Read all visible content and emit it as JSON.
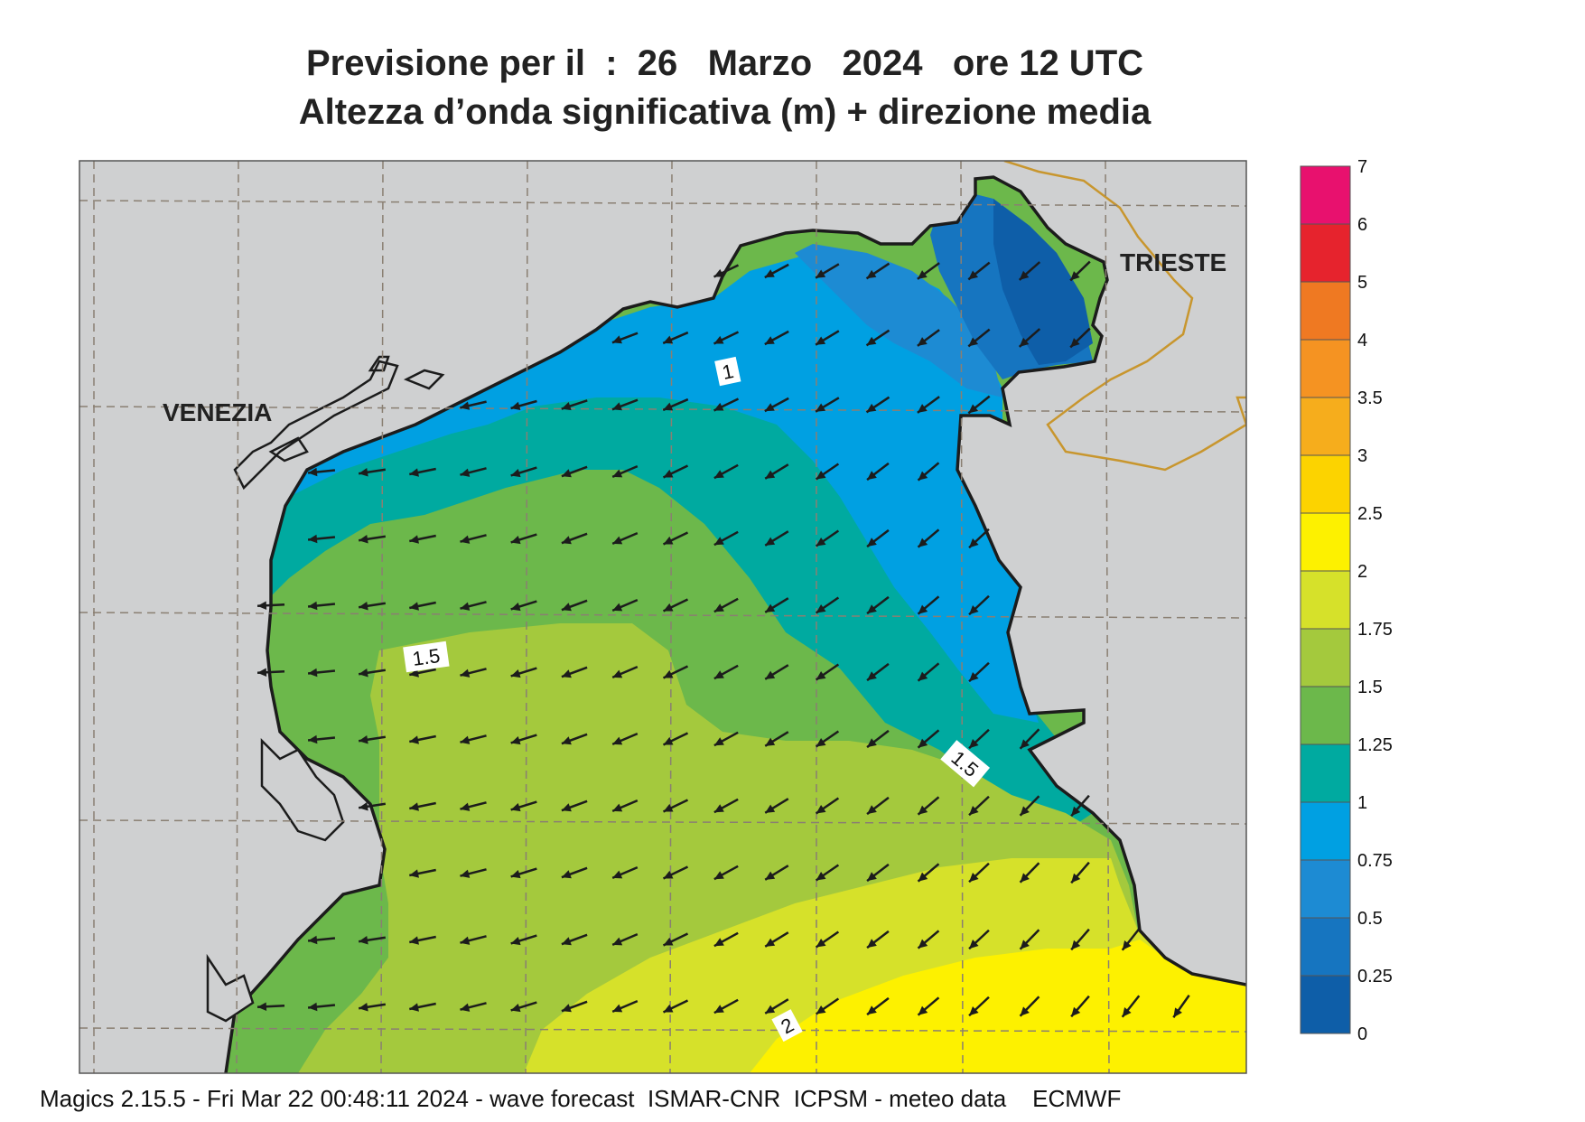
{
  "header": {
    "title_line1": "Previsione per il  :  26   Marzo   2024   ore 12 UTC",
    "title_line2": "Altezza d’onda significativa (m) + direzione media"
  },
  "map": {
    "cities": [
      "VENEZIA",
      "TRIESTE"
    ],
    "contour_labels": [
      "1",
      "1.5",
      "1.5",
      "2"
    ],
    "colors": {
      "land": "#cfd0d1",
      "coast": "#1c1c1c",
      "border": "#c8962e",
      "grid": "#8a7f72",
      "arrow": "#1c1c1c"
    }
  },
  "colorbar": {
    "labels": [
      "7",
      "6",
      "5",
      "4",
      "3.5",
      "3",
      "2.5",
      "2",
      "1.75",
      "1.5",
      "1.25",
      "1",
      "0.75",
      "0.5",
      "0.25",
      "0"
    ],
    "colors": [
      "#e8116e",
      "#e6232d",
      "#ef7922",
      "#f59322",
      "#f6ad1c",
      "#fcd300",
      "#fdf100",
      "#d6e12a",
      "#a4c93d",
      "#6cb84b",
      "#00aaa0",
      "#00a0e2",
      "#1d8bd3",
      "#1675c0",
      "#0e5ea8"
    ]
  },
  "footer": {
    "text": "Magics 2.15.5 - Fri Mar 22 00:48:11 2024 - wave forecast  ISMAR-CNR  ICPSM - meteo data    ECMWF"
  }
}
